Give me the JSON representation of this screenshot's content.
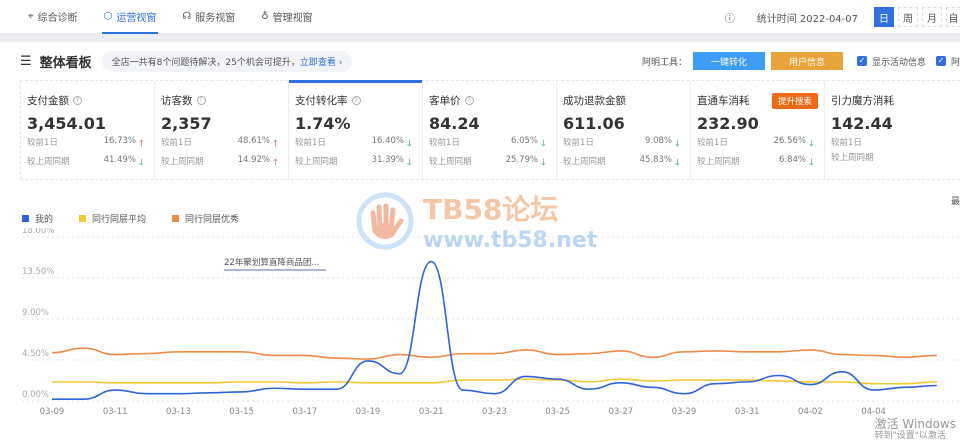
{
  "nav": {
    "tabs": [
      {
        "label": "综合诊断",
        "icon": "location-icon"
      },
      {
        "label": "运营视窗",
        "icon": "shield-icon",
        "active": true
      },
      {
        "label": "服务视窗",
        "icon": "headset-icon"
      },
      {
        "label": "管理视窗",
        "icon": "bulb-icon"
      }
    ],
    "stat_time": "统计时间 2022-04-07",
    "periods": [
      "日",
      "周",
      "月",
      "自"
    ]
  },
  "board": {
    "title": "整体看板",
    "notice": "全店一共有8个问题待解决，25个机会可提升，",
    "notice_link": "立即查看 ›",
    "tools_label": "阿明工具：",
    "btn1": "一键转化",
    "btn2": "用户信息",
    "check1": "显示活动信息",
    "check2": "阿"
  },
  "colors": {
    "primary": "#2f6fde",
    "btn1": "#3d9cf4",
    "btn2": "#e8a33a",
    "up": "#e23c3c",
    "down": "#1fa35a"
  },
  "cards": [
    {
      "name": "支付金额",
      "value": "3,454.01",
      "r1": "较前1日",
      "v1": "16.73%",
      "d1": "up",
      "c1": "",
      "r2": "较上周同期",
      "v2": "41.49%",
      "d2": "down",
      "c2": "down"
    },
    {
      "name": "访客数",
      "value": "2,357",
      "r1": "较前1日",
      "v1": "48.61%",
      "d1": "up",
      "c1": "up",
      "r2": "较上周同期",
      "v2": "14.92%",
      "d2": "up",
      "c2": ""
    },
    {
      "name": "支付转化率",
      "value": "1.74%",
      "r1": "较前1日",
      "v1": "16.40%",
      "d1": "down",
      "c1": "",
      "r2": "较上周同期",
      "v2": "31.39%",
      "d2": "down",
      "c2": "down",
      "selected": true
    },
    {
      "name": "客单价",
      "value": "84.24",
      "r1": "较前1日",
      "v1": "6.05%",
      "d1": "down",
      "c1": "",
      "r2": "较上周同期",
      "v2": "25.79%",
      "d2": "down",
      "c2": ""
    },
    {
      "name": "成功退款金额",
      "value": "611.06",
      "r1": "较前1日",
      "v1": "9.08%",
      "d1": "down",
      "c1": "",
      "r2": "较上周同期",
      "v2": "45.83%",
      "d2": "down",
      "c2": "down"
    },
    {
      "name": "直通车消耗",
      "value": "232.90",
      "badge": "提升搜索",
      "r1": "较前1日",
      "v1": "26.56%",
      "d1": "down",
      "c1": "",
      "r2": "较上周同期",
      "v2": "6.84%",
      "d2": "down",
      "c2": ""
    },
    {
      "name": "引力魔方消耗",
      "value": "142.44",
      "r1": "较前1日",
      "v1": "",
      "d1": "",
      "c1": "",
      "r2": "较上周同期",
      "v2": "",
      "d2": "",
      "c2": ""
    }
  ],
  "more": "最",
  "watermark": {
    "logo": "TB58论坛",
    "url": "www.tb58.net"
  },
  "windows": {
    "line1": "激活 Windows",
    "line2": "转到\"设置\"以激活"
  },
  "chart_data": {
    "type": "line",
    "ylim": [
      0,
      18
    ],
    "yticks": [
      "0.00%",
      "4.50%",
      "9.00%",
      "13.50%",
      "18.00%"
    ],
    "xticks": [
      "03-09",
      "03-11",
      "03-13",
      "03-15",
      "03-17",
      "03-19",
      "03-21",
      "03-23",
      "03-25",
      "03-27",
      "03-29",
      "03-31",
      "04-02",
      "04-04"
    ],
    "x": [
      "03-09",
      "03-10",
      "03-11",
      "03-12",
      "03-13",
      "03-14",
      "03-15",
      "03-16",
      "03-17",
      "03-18",
      "03-19",
      "03-20",
      "03-21",
      "03-22",
      "03-23",
      "03-24",
      "03-25",
      "03-26",
      "03-27",
      "03-28",
      "03-29",
      "03-30",
      "03-31",
      "04-01",
      "04-02",
      "04-03",
      "04-04",
      "04-05",
      "04-06"
    ],
    "annotation": "22年聚划算直降商品团...",
    "series": [
      {
        "name": "我的",
        "color": "#2f63d6",
        "values": [
          0.2,
          0.2,
          1.2,
          0.8,
          0.8,
          0.9,
          1.0,
          1.4,
          1.3,
          1.3,
          4.4,
          3.0,
          15.3,
          1.2,
          0.8,
          2.7,
          2.4,
          1.3,
          2.0,
          1.5,
          0.8,
          1.9,
          2.1,
          2.8,
          1.8,
          3.2,
          1.2,
          1.5,
          1.7
        ]
      },
      {
        "name": "同行同层平均",
        "color": "#f2c832",
        "values": [
          2.1,
          2.1,
          2.0,
          2.0,
          2.0,
          2.0,
          2.1,
          2.1,
          2.0,
          2.1,
          2.0,
          2.0,
          2.0,
          2.3,
          2.3,
          2.4,
          2.3,
          2.1,
          2.4,
          2.2,
          2.3,
          2.3,
          2.3,
          2.2,
          2.1,
          2.1,
          1.9,
          1.9,
          2.1
        ]
      },
      {
        "name": "同行同层优秀",
        "color": "#f08a4b",
        "values": [
          5.3,
          5.8,
          5.1,
          5.2,
          5.4,
          5.4,
          5.4,
          5.0,
          5.0,
          4.7,
          4.6,
          5.1,
          4.8,
          5.2,
          5.2,
          5.6,
          5.1,
          5.2,
          5.5,
          4.8,
          5.4,
          5.5,
          5.4,
          5.4,
          5.6,
          5.1,
          5.0,
          4.8,
          5.0
        ]
      }
    ]
  }
}
